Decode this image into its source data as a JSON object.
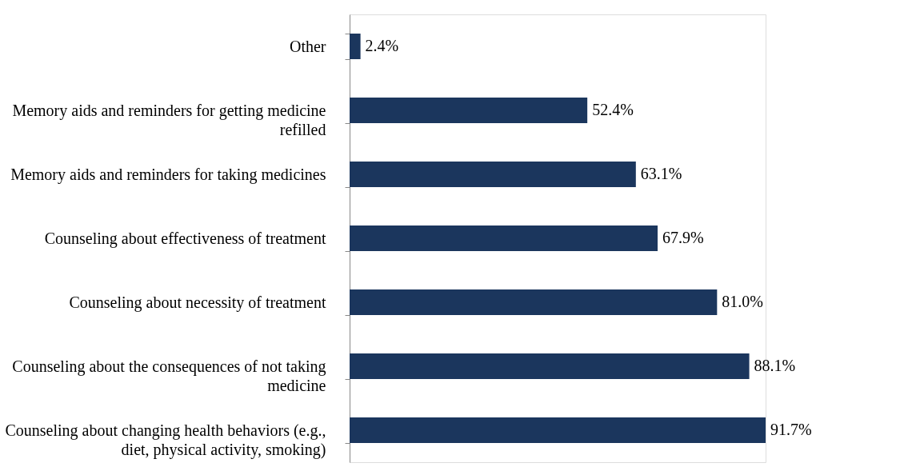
{
  "chart_data": {
    "type": "bar",
    "orientation": "horizontal",
    "categories": [
      "Other",
      "Memory aids and reminders for getting medicine\nrefilled",
      "Memory aids and reminders for taking medicines",
      "Counseling about effectiveness of treatment",
      "Counseling about necessity of treatment",
      "Counseling about the consequences of not taking\nmedicine",
      "Counseling about changing health behaviors (e.g.,\ndiet, physical activity, smoking)"
    ],
    "values": [
      2.4,
      52.4,
      63.1,
      67.9,
      81.0,
      88.1,
      91.7
    ],
    "value_labels": [
      "2.4%",
      "52.4%",
      "63.1%",
      "67.9%",
      "81.0%",
      "88.1%",
      "91.7%"
    ],
    "color": "#1b365d",
    "grid": false,
    "tick_labels": "y"
  }
}
